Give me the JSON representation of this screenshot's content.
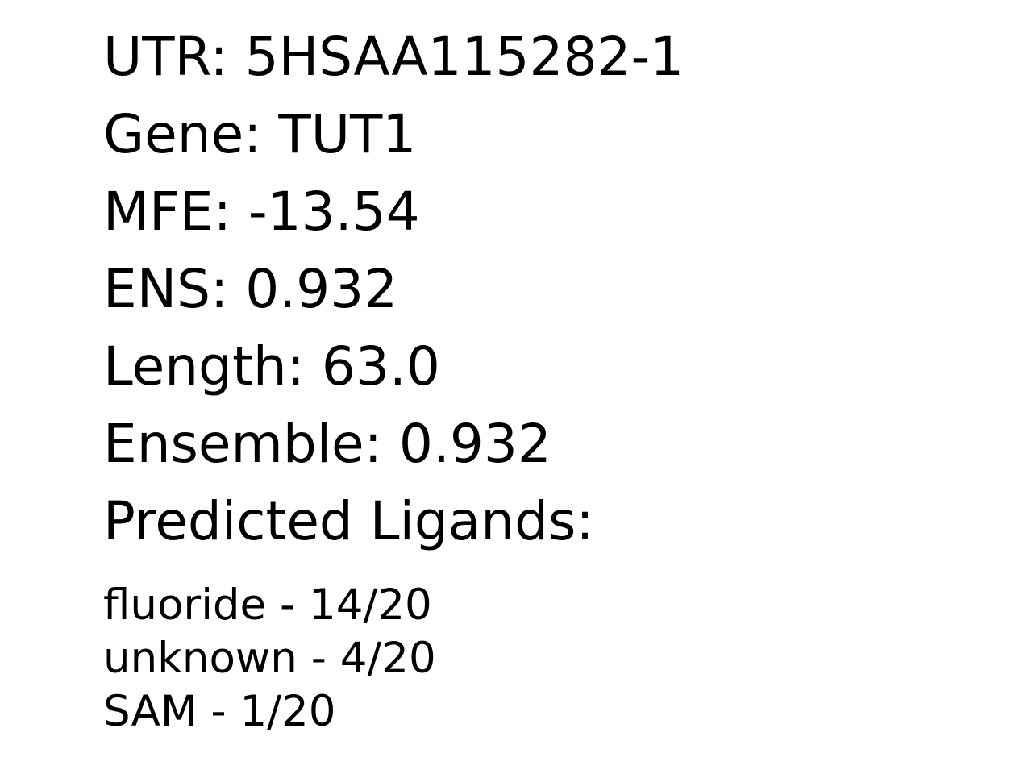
{
  "record": {
    "utr": {
      "label": "UTR:",
      "value": "5HSAA115282-1"
    },
    "gene": {
      "label": "Gene:",
      "value": "TUT1"
    },
    "mfe": {
      "label": "MFE:",
      "value": "-13.54"
    },
    "ens": {
      "label": "ENS:",
      "value": "0.932"
    },
    "length": {
      "label": "Length:",
      "value": "63.0"
    },
    "ensemble": {
      "label": "Ensemble:",
      "value": "0.932"
    }
  },
  "ligands": {
    "heading": "Predicted Ligands:",
    "items": [
      {
        "name": "fluoride",
        "separator": "-",
        "score": "14/20"
      },
      {
        "name": "unknown",
        "separator": "-",
        "score": "4/20"
      },
      {
        "name": "SAM",
        "separator": "-",
        "score": "1/20"
      }
    ]
  }
}
